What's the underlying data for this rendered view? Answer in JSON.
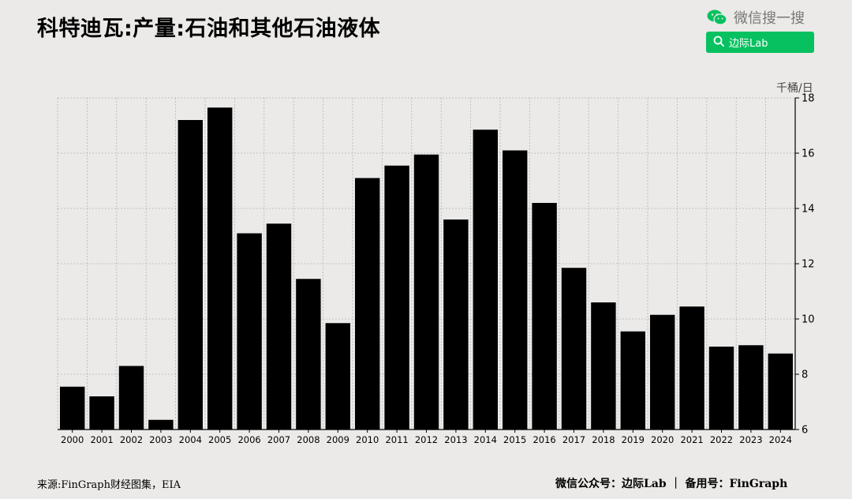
{
  "header": {
    "title": "科特迪瓦:产量:石油和其他石油液体",
    "wechat_search_text": "微信搜一搜",
    "search_label": "边际Lab",
    "accent_color": "#07c160"
  },
  "footer": {
    "source": "来源:FinGraph财经图集，EIA",
    "right": "微信公众号：边际Lab  ｜  备用号：FinGraph"
  },
  "chart_data": {
    "type": "bar",
    "title": "科特迪瓦:产量:石油和其他石油液体",
    "unit": "千桶/日",
    "categories": [
      "2000",
      "2001",
      "2002",
      "2003",
      "2004",
      "2005",
      "2006",
      "2007",
      "2008",
      "2009",
      "2010",
      "2011",
      "2012",
      "2013",
      "2014",
      "2015",
      "2016",
      "2017",
      "2018",
      "2019",
      "2020",
      "2021",
      "2022",
      "2023",
      "2024"
    ],
    "values": [
      7.55,
      7.2,
      8.3,
      6.35,
      17.2,
      17.65,
      13.1,
      13.45,
      11.45,
      9.85,
      15.1,
      15.55,
      15.95,
      13.6,
      16.85,
      16.1,
      14.2,
      11.85,
      10.6,
      9.55,
      10.15,
      10.45,
      9.0,
      9.05,
      8.75
    ],
    "ylim": [
      6,
      18
    ],
    "yticks": [
      6,
      8,
      10,
      12,
      14,
      16,
      18
    ],
    "y_axis_side": "right",
    "grid": true,
    "bar_color": "#000000"
  }
}
